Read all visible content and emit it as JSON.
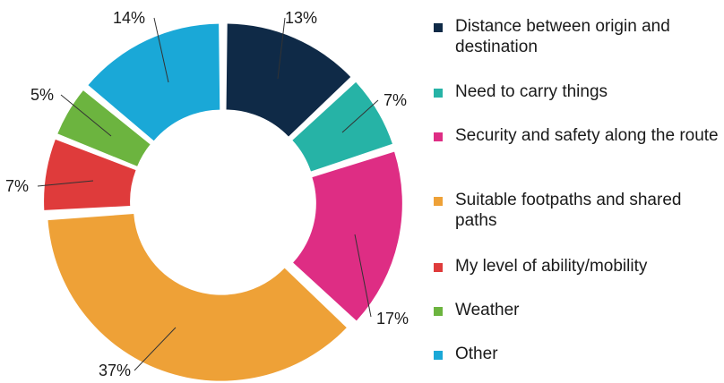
{
  "chart_data": {
    "type": "pie",
    "donut": true,
    "exploded_slices": true,
    "title": "",
    "legend_position": "right",
    "slices": [
      {
        "label": "Distance between origin and destination",
        "value": 13,
        "value_label": "13%",
        "color": "#0f2a47"
      },
      {
        "label": "Need to carry things",
        "value": 7,
        "value_label": "7%",
        "color": "#26b3a6"
      },
      {
        "label": "Security and safety along the route",
        "value": 17,
        "value_label": "17%",
        "color": "#de2d84"
      },
      {
        "label": "Suitable footpaths and shared paths",
        "value": 37,
        "value_label": "37%",
        "color": "#eea137"
      },
      {
        "label": "My level of ability/mobility",
        "value": 7,
        "value_label": "7%",
        "color": "#df3b3b"
      },
      {
        "label": "Weather",
        "value": 5,
        "value_label": "5%",
        "color": "#6cb43f"
      },
      {
        "label": "Other",
        "value": 14,
        "value_label": "14%",
        "color": "#1aa8d7"
      }
    ]
  }
}
